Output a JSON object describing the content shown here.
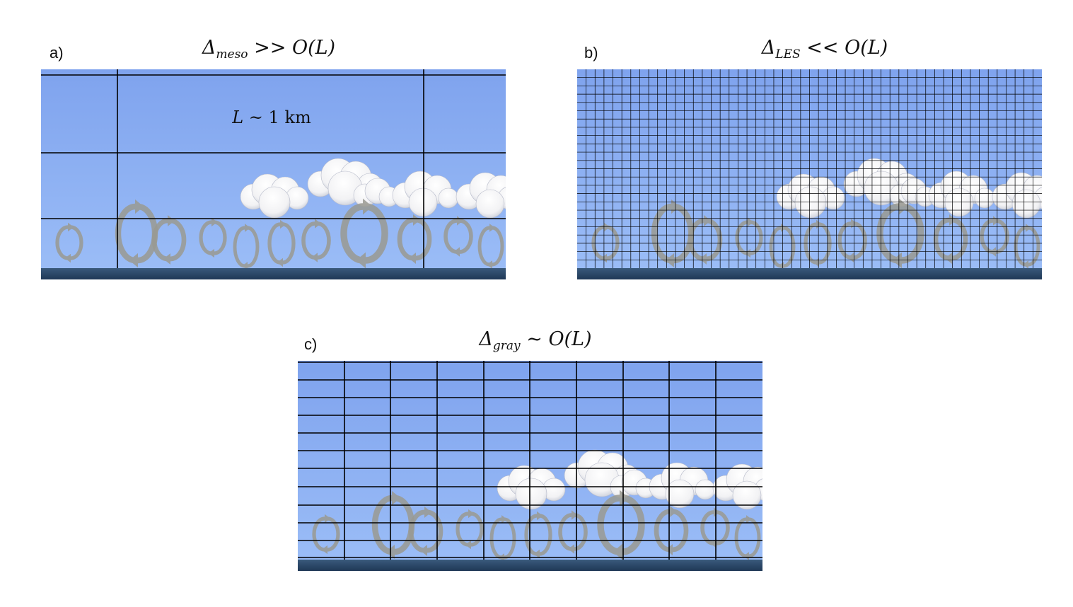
{
  "panels": {
    "a": {
      "label": "a)",
      "title_symbol": "Δ",
      "title_sub": "meso",
      "title_rest": " >> O(L)",
      "annotation_var": "L",
      "annotation_rest": " ~ 1 km"
    },
    "b": {
      "label": "b)",
      "title_symbol": "Δ",
      "title_sub": "LES",
      "title_rest": " << O(L)"
    },
    "c": {
      "label": "c)",
      "title_symbol": "Δ",
      "title_sub": "gray",
      "title_rest": " ~ O(L)"
    }
  },
  "colors": {
    "sky_top": "#7fa3ee",
    "sky_bottom": "#9cbef7",
    "ocean": "#1f3856",
    "grid": "#000000",
    "eddy": "#9a9a92",
    "cloud": "#f2f2f4"
  }
}
